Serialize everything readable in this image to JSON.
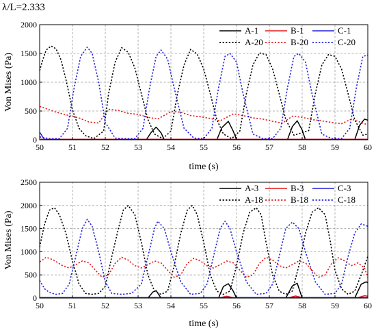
{
  "page_label": "λ/L=2.333",
  "colors": {
    "black": "#000000",
    "red": "#e41a1c",
    "blue": "#1f1fe0",
    "grid": "#9a9a9a"
  },
  "chart_data": [
    {
      "type": "line",
      "title": "",
      "xlabel": "time (s)",
      "ylabel": "Von Mises (Pa)",
      "xlim": [
        50,
        60
      ],
      "ylim": [
        0,
        2000
      ],
      "x_ticks": [
        50,
        51,
        52,
        53,
        54,
        55,
        56,
        57,
        58,
        59,
        60
      ],
      "y_ticks": [
        0,
        500,
        1000,
        1500,
        2000
      ],
      "grid": true,
      "legend_position": "top-right",
      "series": [
        {
          "name": "A-1",
          "color": "#000000",
          "style": "solid",
          "x": [
            53.0,
            53.25,
            53.4,
            53.55,
            53.7,
            53.8,
            55.0,
            55.4,
            55.55,
            55.75,
            55.9,
            56.0,
            57.0,
            57.55,
            57.7,
            57.85,
            58.0,
            58.1,
            59.0,
            59.6,
            59.75,
            59.9,
            60.0
          ],
          "y": [
            0,
            0,
            130,
            220,
            120,
            0,
            0,
            0,
            210,
            320,
            150,
            0,
            0,
            0,
            230,
            330,
            170,
            0,
            0,
            0,
            250,
            360,
            340
          ]
        },
        {
          "name": "B-1",
          "color": "#e41a1c",
          "style": "solid",
          "x": [
            50,
            60
          ],
          "y": [
            8,
            10
          ]
        },
        {
          "name": "C-1",
          "color": "#1f1fe0",
          "style": "solid",
          "x": [
            50,
            50.05,
            50.1,
            50.15,
            50.25,
            60
          ],
          "y": [
            130,
            90,
            40,
            10,
            5,
            5
          ]
        },
        {
          "name": "A-20",
          "color": "#000000",
          "style": "dotted",
          "x": [
            50,
            50.1,
            50.2,
            50.35,
            50.5,
            50.65,
            50.8,
            51.0,
            51.2,
            51.4,
            51.65,
            51.95,
            52.1,
            52.3,
            52.5,
            52.7,
            52.9,
            53.1,
            53.3,
            53.5,
            53.75,
            54.0,
            54.2,
            54.4,
            54.6,
            54.8,
            55.0,
            55.2,
            55.4,
            55.6,
            55.85,
            56.1,
            56.3,
            56.5,
            56.7,
            56.9,
            57.1,
            57.3,
            57.5,
            57.75,
            58.2,
            58.4,
            58.6,
            58.8,
            59.0,
            59.2,
            59.4,
            59.6,
            59.85,
            60.0
          ],
          "y": [
            1200,
            1400,
            1560,
            1630,
            1580,
            1390,
            1050,
            520,
            200,
            70,
            20,
            150,
            800,
            1350,
            1600,
            1520,
            1250,
            800,
            350,
            100,
            20,
            150,
            800,
            1300,
            1570,
            1490,
            1230,
            800,
            350,
            100,
            20,
            150,
            800,
            1300,
            1510,
            1480,
            1230,
            800,
            350,
            80,
            160,
            800,
            1300,
            1480,
            1450,
            1230,
            800,
            350,
            80,
            100
          ]
        },
        {
          "name": "B-20",
          "color": "#e41a1c",
          "style": "dotted",
          "x": [
            50,
            50.2,
            50.5,
            50.9,
            51.2,
            51.5,
            51.8,
            52.1,
            52.4,
            52.7,
            53.0,
            53.3,
            53.6,
            54.0,
            54.3,
            54.6,
            54.9,
            55.2,
            55.5,
            55.9,
            56.2,
            56.5,
            56.8,
            57.1,
            57.4,
            57.7,
            58.0,
            58.3,
            58.6,
            58.9,
            59.2,
            59.5,
            59.7,
            60.0
          ],
          "y": [
            580,
            540,
            480,
            420,
            380,
            310,
            290,
            530,
            510,
            460,
            440,
            390,
            360,
            490,
            480,
            420,
            400,
            370,
            330,
            450,
            420,
            380,
            360,
            320,
            290,
            410,
            390,
            350,
            330,
            300,
            280,
            360,
            320,
            260
          ]
        },
        {
          "name": "C-20",
          "color": "#1f1fe0",
          "style": "dotted",
          "x": [
            50,
            50.3,
            50.6,
            50.85,
            51.05,
            51.25,
            51.45,
            51.6,
            51.8,
            52.0,
            52.3,
            52.6,
            52.9,
            53.15,
            53.35,
            53.55,
            53.7,
            53.9,
            54.1,
            54.4,
            54.7,
            55.0,
            55.25,
            55.45,
            55.65,
            55.8,
            56.0,
            56.2,
            56.5,
            56.8,
            57.1,
            57.35,
            57.55,
            57.75,
            57.9,
            58.1,
            58.3,
            58.6,
            58.9,
            59.2,
            59.45,
            59.65,
            59.85,
            60.0
          ],
          "y": [
            50,
            20,
            20,
            200,
            900,
            1450,
            1610,
            1500,
            1000,
            300,
            30,
            20,
            20,
            200,
            900,
            1450,
            1560,
            1400,
            900,
            200,
            30,
            20,
            200,
            900,
            1450,
            1500,
            1350,
            800,
            100,
            20,
            20,
            200,
            900,
            1450,
            1500,
            1350,
            800,
            100,
            20,
            20,
            200,
            900,
            1450,
            1470
          ]
        }
      ]
    },
    {
      "type": "line",
      "title": "",
      "xlabel": "time (s)",
      "ylabel": "Von Mises (Pa)",
      "xlim": [
        50,
        60
      ],
      "ylim": [
        0,
        2500
      ],
      "x_ticks": [
        50,
        51,
        52,
        53,
        54,
        55,
        56,
        57,
        58,
        59,
        60
      ],
      "y_ticks": [
        0,
        500,
        1000,
        1500,
        2000,
        2500
      ],
      "grid": true,
      "legend_position": "top-right",
      "series": [
        {
          "name": "A-3",
          "color": "#000000",
          "style": "solid",
          "x": [
            53.0,
            53.3,
            53.45,
            53.55,
            53.7,
            55.0,
            55.45,
            55.6,
            55.75,
            55.9,
            56.0,
            57.0,
            57.5,
            57.7,
            57.85,
            58.0,
            59.0,
            59.6,
            59.8,
            59.95,
            60.0
          ],
          "y": [
            0,
            0,
            130,
            160,
            0,
            0,
            0,
            250,
            310,
            150,
            0,
            0,
            0,
            260,
            320,
            0,
            0,
            0,
            300,
            350,
            330
          ]
        },
        {
          "name": "B-3",
          "color": "#e41a1c",
          "style": "solid",
          "x": [
            50,
            55.5,
            55.7,
            55.9,
            57.6,
            57.8,
            58.0,
            59.7,
            59.9,
            60.0
          ],
          "y": [
            10,
            10,
            40,
            10,
            10,
            45,
            10,
            10,
            50,
            40
          ]
        },
        {
          "name": "C-3",
          "color": "#1f1fe0",
          "style": "solid",
          "x": [
            50,
            60
          ],
          "y": [
            10,
            10
          ]
        },
        {
          "name": "A-18",
          "color": "#000000",
          "style": "dotted",
          "x": [
            50,
            50.15,
            50.3,
            50.45,
            50.6,
            50.8,
            51.0,
            51.2,
            51.4,
            51.6,
            51.8,
            52.0,
            52.2,
            52.4,
            52.55,
            52.7,
            52.9,
            53.1,
            53.3,
            53.5,
            53.7,
            53.9,
            54.1,
            54.3,
            54.5,
            54.65,
            54.8,
            55.0,
            55.2,
            55.4,
            55.6,
            55.8,
            56.0,
            56.2,
            56.4,
            56.6,
            56.75,
            56.9,
            57.1,
            57.3,
            57.5,
            57.7,
            57.9,
            58.1,
            58.3,
            58.5,
            58.7,
            58.85,
            59.0,
            59.2,
            59.4,
            59.6,
            59.8,
            60.0
          ],
          "y": [
            1100,
            1600,
            1900,
            1950,
            1800,
            1400,
            800,
            300,
            100,
            80,
            100,
            250,
            900,
            1500,
            1900,
            2000,
            1800,
            1200,
            500,
            150,
            80,
            150,
            700,
            1400,
            1900,
            2000,
            1800,
            1200,
            500,
            150,
            80,
            150,
            700,
            1400,
            1850,
            1950,
            1800,
            1200,
            500,
            150,
            80,
            150,
            700,
            1400,
            1850,
            1950,
            1800,
            1250,
            600,
            200,
            80,
            150,
            500,
            900
          ]
        },
        {
          "name": "B-18",
          "color": "#e41a1c",
          "style": "dotted",
          "x": [
            50,
            50.2,
            50.4,
            50.7,
            50.9,
            51.1,
            51.3,
            51.5,
            51.7,
            51.9,
            52.1,
            52.3,
            52.5,
            52.7,
            52.9,
            53.1,
            53.3,
            53.5,
            53.7,
            53.9,
            54.1,
            54.3,
            54.5,
            54.7,
            54.9,
            55.1,
            55.3,
            55.5,
            55.7,
            55.9,
            56.1,
            56.3,
            56.5,
            56.7,
            56.9,
            57.1,
            57.3,
            57.5,
            57.7,
            57.9,
            58.1,
            58.3,
            58.5,
            58.7,
            58.9,
            59.1,
            59.3,
            59.5,
            59.7,
            59.9,
            60.0
          ],
          "y": [
            780,
            880,
            830,
            700,
            650,
            720,
            800,
            760,
            600,
            450,
            500,
            750,
            880,
            820,
            700,
            650,
            720,
            800,
            760,
            600,
            450,
            500,
            750,
            860,
            800,
            700,
            650,
            720,
            800,
            760,
            600,
            450,
            500,
            750,
            880,
            820,
            700,
            650,
            720,
            800,
            760,
            600,
            450,
            500,
            750,
            870,
            800,
            700,
            760,
            650,
            450
          ]
        },
        {
          "name": "C-18",
          "color": "#1f1fe0",
          "style": "dotted",
          "x": [
            50,
            50.15,
            50.3,
            50.5,
            50.7,
            50.9,
            51.1,
            51.3,
            51.45,
            51.6,
            51.8,
            52.0,
            52.2,
            52.5,
            52.8,
            53.1,
            53.3,
            53.5,
            53.6,
            53.8,
            54.0,
            54.3,
            54.6,
            54.9,
            55.1,
            55.3,
            55.5,
            55.65,
            55.8,
            56.0,
            56.3,
            56.6,
            56.9,
            57.1,
            57.3,
            57.5,
            57.7,
            57.9,
            58.1,
            58.4,
            58.7,
            59.0,
            59.2,
            59.4,
            59.6,
            59.8,
            60.0
          ],
          "y": [
            380,
            200,
            120,
            80,
            100,
            300,
            900,
            1500,
            1700,
            1550,
            1000,
            350,
            100,
            80,
            100,
            300,
            900,
            1500,
            1660,
            1500,
            1000,
            350,
            80,
            100,
            300,
            900,
            1500,
            1660,
            1500,
            1000,
            350,
            80,
            100,
            300,
            900,
            1500,
            1640,
            1500,
            1000,
            350,
            80,
            100,
            300,
            900,
            1400,
            1600,
            1550
          ]
        }
      ]
    }
  ]
}
